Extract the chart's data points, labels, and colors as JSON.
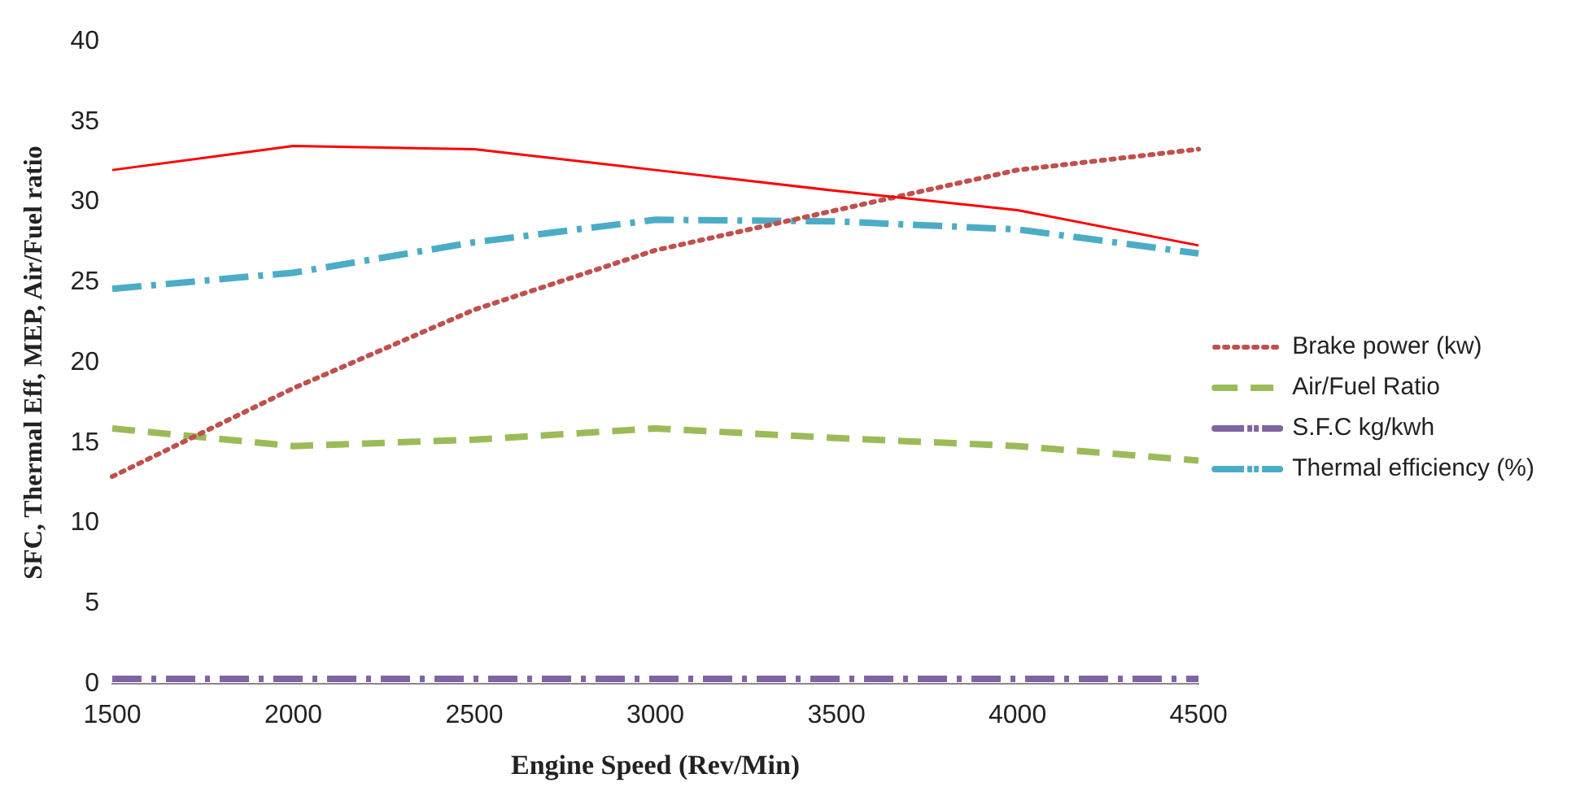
{
  "chart_data": {
    "type": "line",
    "xlabel": "Engine Speed (Rev/Min)",
    "ylabel": "SFC, Thermal Eff, MEP, Air/Fuel ratio",
    "categories": [
      "1500",
      "2000",
      "2500",
      "3000",
      "3500",
      "4000",
      "4500"
    ],
    "series": [
      {
        "color": "#ff0000",
        "line_style": "solid",
        "values": [
          32.0,
          33.5,
          33.3,
          32.0,
          30.7,
          29.5,
          27.3
        ]
      },
      {
        "name": "Brake power (kw)",
        "color": "#c0504d",
        "line_style": "dotted",
        "values": [
          12.9,
          18.4,
          23.3,
          27.0,
          29.5,
          32.0,
          33.3
        ]
      },
      {
        "name": "Air/Fuel Ratio",
        "color": "#9bbb59",
        "line_style": "dashed",
        "values": [
          15.9,
          14.8,
          15.2,
          15.9,
          15.3,
          14.8,
          13.9
        ]
      },
      {
        "name": "S.F.C kg/kwh",
        "color": "#8064a2",
        "line_style": "dashdot",
        "values": [
          0.3,
          0.3,
          0.3,
          0.3,
          0.3,
          0.3,
          0.3
        ]
      },
      {
        "name": "Thermal efficiency (%)",
        "color": "#4bacc6",
        "line_style": "dashdot",
        "values": [
          24.6,
          25.6,
          27.5,
          28.9,
          28.8,
          28.3,
          26.8
        ]
      }
    ],
    "ylim": [
      0,
      40
    ],
    "yticks": [
      0,
      5,
      10,
      15,
      20,
      25,
      30,
      35,
      40
    ],
    "grid": false,
    "legend": "right",
    "marker": "none"
  }
}
